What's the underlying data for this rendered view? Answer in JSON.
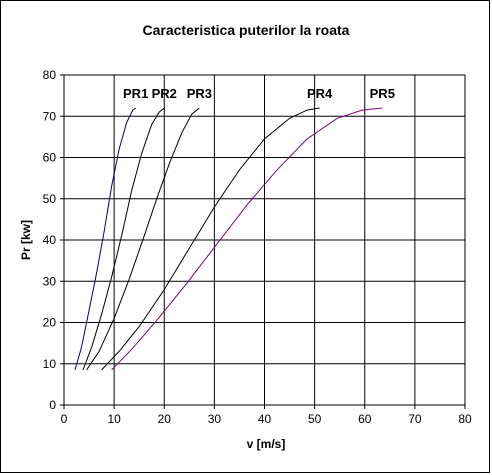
{
  "chart_data": {
    "type": "line",
    "title": "Caracteristica puterilor la roata",
    "xlabel": "v [m/s]",
    "ylabel": "Pr [kw]",
    "xlim": [
      0,
      80
    ],
    "ylim": [
      0,
      80
    ],
    "xticks": [
      "0",
      "10",
      "20",
      "30",
      "40",
      "50",
      "60",
      "70",
      "80"
    ],
    "yticks": [
      "0",
      "10",
      "20",
      "30",
      "40",
      "50",
      "60",
      "70",
      "80"
    ],
    "grid": true,
    "legend": "none",
    "series": [
      {
        "name": "PR1",
        "color": "#000080",
        "x": [
          2.2,
          3.5,
          5.0,
          6.5,
          8.0,
          9.5,
          11.0,
          12.5,
          13.7,
          14.3
        ],
        "y": [
          8.5,
          14.0,
          23.0,
          32.0,
          42.0,
          53.0,
          62.0,
          68.5,
          71.5,
          72.0
        ]
      },
      {
        "name": "PR2",
        "color": "#000000",
        "x": [
          3.8,
          5.5,
          7.5,
          9.5,
          11.5,
          13.5,
          15.5,
          17.5,
          19.0,
          20.0
        ],
        "y": [
          8.5,
          14.0,
          22.0,
          31.0,
          41.0,
          52.0,
          61.0,
          68.0,
          71.0,
          72.0
        ]
      },
      {
        "name": "PR3",
        "color": "#000000",
        "x": [
          4.5,
          7.0,
          10.0,
          13.0,
          16.0,
          18.5,
          21.0,
          23.5,
          25.5,
          27.0
        ],
        "y": [
          8.5,
          13.0,
          21.0,
          30.5,
          41.0,
          50.0,
          58.5,
          66.0,
          70.5,
          72.0
        ]
      },
      {
        "name": "PR4",
        "color": "#000000",
        "x": [
          7.5,
          11.0,
          15.0,
          20.0,
          25.0,
          30.0,
          35.0,
          40.0,
          45.0,
          48.5,
          51.0
        ],
        "y": [
          8.5,
          13.0,
          19.0,
          28.0,
          38.0,
          48.0,
          57.0,
          64.5,
          69.5,
          71.5,
          72.0
        ]
      },
      {
        "name": "PR5",
        "color": "#800080",
        "x": [
          9.5,
          13.5,
          18.5,
          24.5,
          30.5,
          36.5,
          42.5,
          48.5,
          54.5,
          59.5,
          63.5
        ],
        "y": [
          8.5,
          13.5,
          20.5,
          29.5,
          39.0,
          48.5,
          57.0,
          64.5,
          69.5,
          71.5,
          72.0
        ]
      }
    ]
  }
}
